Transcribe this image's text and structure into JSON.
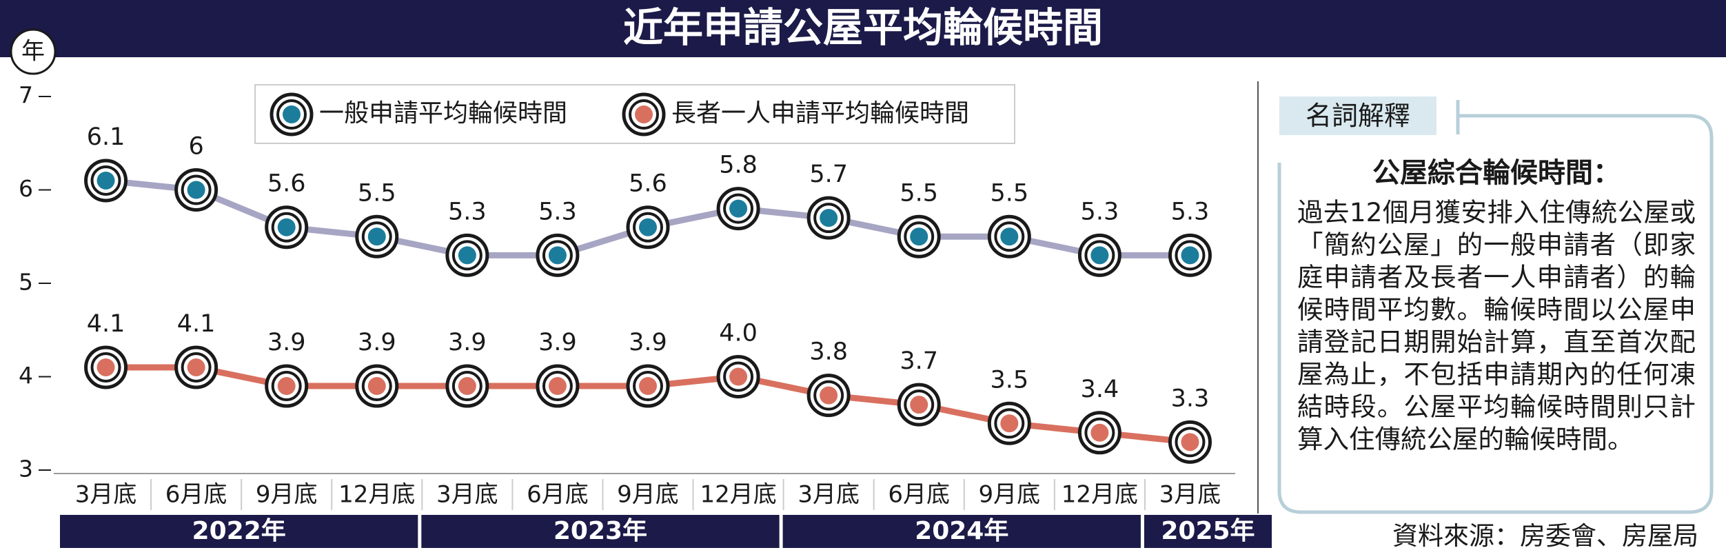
{
  "chart_data": {
    "type": "line",
    "title": "近年申請公屋平均輪候時間",
    "y_label": "年",
    "categories": [
      "3月底",
      "6月底",
      "9月底",
      "12月底",
      "3月底",
      "6月底",
      "9月底",
      "12月底",
      "3月底",
      "6月底",
      "9月底",
      "12月底",
      "3月底"
    ],
    "groups": [
      "2022年",
      "2023年",
      "2024年",
      "2025年"
    ],
    "series": [
      {
        "name": "一般申請平均輪候時間",
        "color": "#1b7d9b",
        "line_color": "#a6a5c3",
        "values": [
          6.1,
          6.0,
          5.6,
          5.5,
          5.3,
          5.3,
          5.6,
          5.8,
          5.7,
          5.5,
          5.5,
          5.3,
          5.3
        ]
      },
      {
        "name": "長者一人申請平均輪候時間",
        "color": "#d9705f",
        "line_color": "#d9705f",
        "values": [
          4.1,
          4.1,
          3.9,
          3.9,
          3.9,
          3.9,
          3.9,
          4.0,
          3.8,
          3.7,
          3.5,
          3.4,
          3.3
        ],
        "value_labels": [
          "4.1",
          "4.1",
          "3.9",
          "3.9",
          "3.9",
          "3.9",
          "3.9",
          "4.0",
          "3.8",
          "3.7",
          "3.5",
          "3.4",
          "3.3"
        ]
      }
    ],
    "ylim": [
      3,
      7
    ],
    "yticks": [
      3,
      4,
      5,
      6,
      7
    ],
    "legend": "top"
  },
  "glossary": {
    "tag": "名詞解釋",
    "heading": "公屋綜合輪候時間：",
    "body": "過去12個月獲安排入住傳統公屋或「簡約公屋」的一般申請者（即家庭申請者及長者一人申請者）的輪候時間平均數。輪候時間以公屋申請登記日期開始計算，直至首次配屋為止，不包括申請期內的任何凍結時段。公屋平均輪候時間則只計算入住傳統公屋的輪候時間。"
  },
  "source": "資料來源：房委會、房屋局"
}
